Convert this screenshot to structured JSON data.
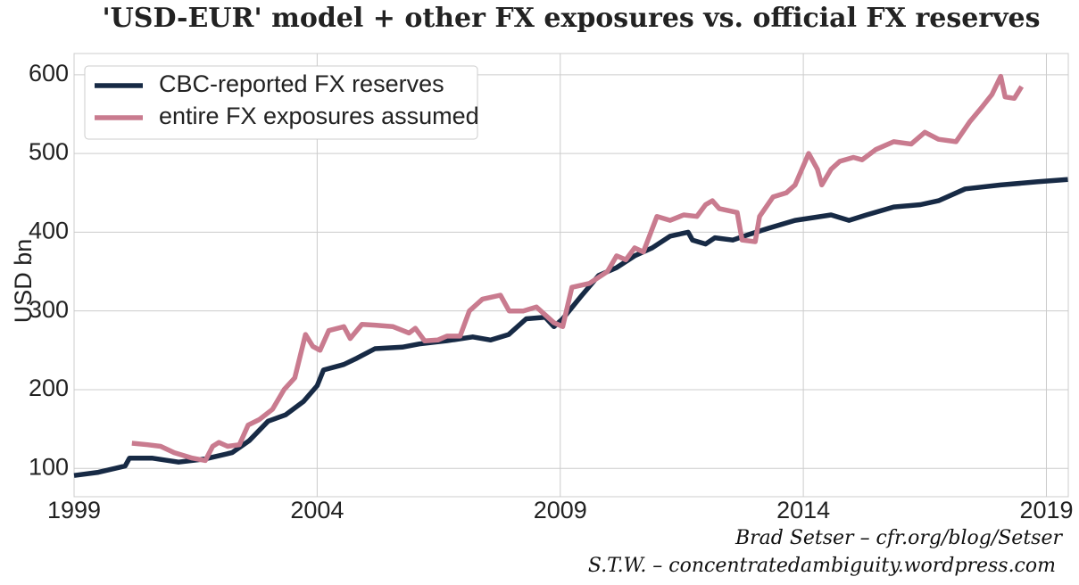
{
  "chart_data": {
    "type": "line",
    "title": "'USD-EUR' model + other FX exposures vs. official FX reserves",
    "y_label": "USD bn",
    "credits": [
      "Brad Setser – cfr.org/blog/Setser",
      "S.T.W. – concentratedambiguity.wordpress.com"
    ],
    "xlim": [
      1999,
      2019.45
    ],
    "xticks": [
      1999,
      2004,
      2009,
      2014,
      2019
    ],
    "ylim": [
      64,
      627
    ],
    "yticks": [
      100,
      200,
      300,
      400,
      500,
      600
    ],
    "grid": true,
    "legend": "upper-left",
    "series": [
      {
        "name": "CBC-reported FX reserves",
        "color": "#172a45",
        "x": [
          1999.0,
          1999.5,
          2000.05,
          2000.14,
          2000.6,
          2001.15,
          2001.7,
          2002.25,
          2002.6,
          2002.99,
          2003.35,
          2003.72,
          2004.0,
          2004.13,
          2004.55,
          2004.82,
          2005.19,
          2005.75,
          2006.1,
          2006.66,
          2007.2,
          2007.57,
          2007.94,
          2008.3,
          2008.69,
          2008.87,
          2009.05,
          2009.42,
          2009.79,
          2010.16,
          2010.53,
          2010.89,
          2011.26,
          2011.63,
          2011.72,
          2011.99,
          2012.18,
          2012.55,
          2012.92,
          2013.28,
          2013.83,
          2014.57,
          2014.94,
          2015.3,
          2015.86,
          2016.41,
          2016.78,
          2017.33,
          2018.06,
          2018.8,
          2019.44
        ],
        "values": [
          91,
          95,
          103,
          113,
          113,
          108,
          112,
          120,
          135,
          160,
          168,
          185,
          205,
          225,
          232,
          240,
          252,
          254,
          258,
          262,
          267,
          263,
          270,
          290,
          292,
          280,
          290,
          318,
          345,
          355,
          370,
          380,
          395,
          400,
          390,
          385,
          393,
          390,
          398,
          405,
          415,
          422,
          415,
          422,
          432,
          435,
          440,
          455,
          460,
          464,
          467
        ]
      },
      {
        "name": "entire FX exposures assumed",
        "color": "#c97b8f",
        "x": [
          2000.19,
          2000.51,
          2000.78,
          2001.06,
          2001.43,
          2001.7,
          2001.85,
          2001.98,
          2002.16,
          2002.4,
          2002.58,
          2002.81,
          2003.08,
          2003.32,
          2003.54,
          2003.76,
          2003.91,
          2004.06,
          2004.24,
          2004.55,
          2004.68,
          2004.92,
          2005.19,
          2005.56,
          2005.89,
          2006.02,
          2006.21,
          2006.48,
          2006.67,
          2006.94,
          2007.13,
          2007.4,
          2007.77,
          2007.95,
          2008.24,
          2008.51,
          2008.87,
          2009.05,
          2009.24,
          2009.6,
          2009.97,
          2010.16,
          2010.35,
          2010.53,
          2010.71,
          2010.99,
          2011.26,
          2011.54,
          2011.81,
          2011.99,
          2012.13,
          2012.27,
          2012.64,
          2012.74,
          2013.01,
          2013.1,
          2013.38,
          2013.65,
          2013.83,
          2014.11,
          2014.29,
          2014.38,
          2014.57,
          2014.75,
          2015.03,
          2015.21,
          2015.49,
          2015.86,
          2016.22,
          2016.5,
          2016.78,
          2017.14,
          2017.42,
          2017.69,
          2017.88,
          2018.06,
          2018.15,
          2018.34,
          2018.49
        ],
        "values": [
          132,
          130,
          128,
          120,
          113,
          110,
          128,
          133,
          128,
          130,
          155,
          162,
          175,
          200,
          215,
          270,
          255,
          250,
          275,
          280,
          265,
          283,
          282,
          280,
          272,
          278,
          262,
          263,
          268,
          268,
          300,
          315,
          320,
          300,
          300,
          305,
          285,
          280,
          330,
          335,
          350,
          370,
          365,
          380,
          375,
          420,
          415,
          422,
          420,
          435,
          440,
          430,
          425,
          390,
          388,
          420,
          445,
          450,
          460,
          500,
          480,
          460,
          480,
          490,
          495,
          492,
          505,
          515,
          512,
          527,
          518,
          515,
          540,
          560,
          575,
          598,
          572,
          570,
          585
        ]
      }
    ]
  }
}
